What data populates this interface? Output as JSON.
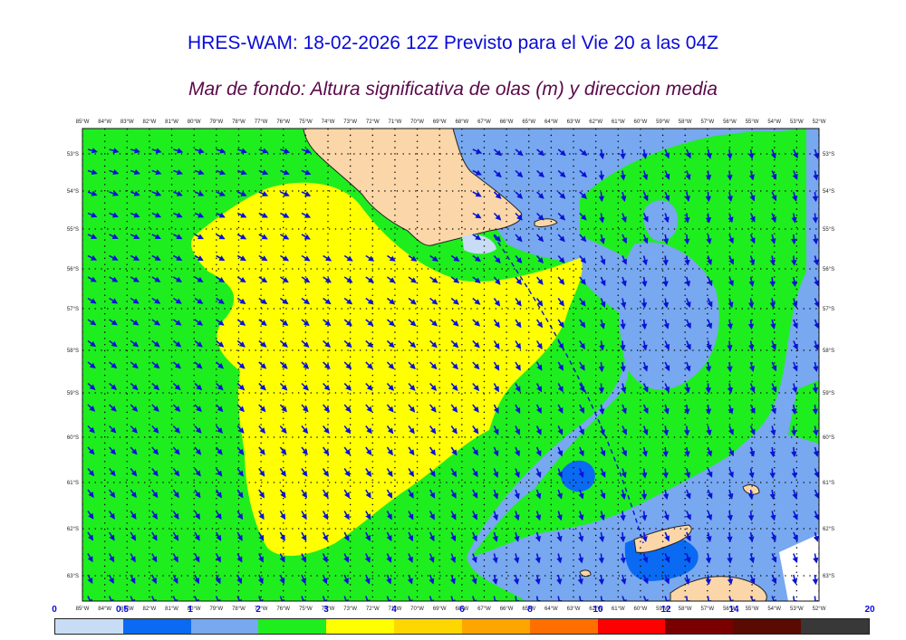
{
  "title": "HRES-WAM: 18-02-2026 12Z Previsto para el Vie 20 a las 04Z",
  "subtitle": "Mar de fondo: Altura significativa de olas (m) y direccion media",
  "map": {
    "lon_labels": [
      "85°W",
      "84°W",
      "83°W",
      "82°W",
      "81°W",
      "80°W",
      "79°W",
      "78°W",
      "77°W",
      "76°W",
      "75°W",
      "74°W",
      "73°W",
      "72°W",
      "71°W",
      "70°W",
      "69°W",
      "68°W",
      "67°W",
      "66°W",
      "65°W",
      "64°W",
      "63°W",
      "62°W",
      "61°W",
      "60°W",
      "59°W",
      "58°W",
      "57°W",
      "56°W",
      "55°W",
      "54°W",
      "53°W",
      "52°W"
    ],
    "lat_labels": [
      "53°S",
      "54°S",
      "55°S",
      "56°S",
      "57°S",
      "58°S",
      "59°S",
      "60°S",
      "61°S",
      "62°S",
      "63°S"
    ],
    "colors": {
      "ocean_green": "#1eee1e",
      "ocean_yellow": "#ffff00",
      "ocean_light_blue": "#78a8f0",
      "ocean_blue": "#0a6af2",
      "land": "#fbd6a8",
      "ice": "#c8dcf5",
      "arrow": "#0a14d4"
    }
  },
  "legend": {
    "labels": [
      "0",
      "0.5",
      "1",
      "2",
      "3",
      "4",
      "6",
      "8",
      "10",
      "12",
      "14",
      "20"
    ],
    "colors": [
      "#c8dcf5",
      "#0a6af2",
      "#78a8f0",
      "#1eee1e",
      "#ffff00",
      "#ffd700",
      "#ffa500",
      "#ff6f00",
      "#ff0000",
      "#7a0000",
      "#5a0a00",
      "#383838"
    ]
  }
}
